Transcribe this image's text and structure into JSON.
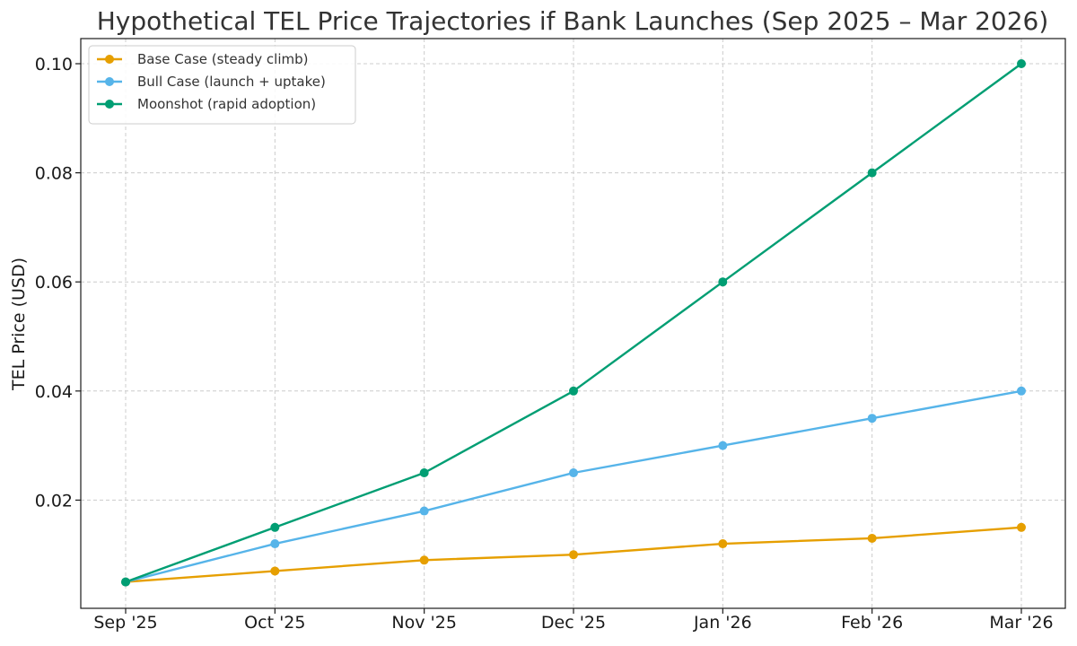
{
  "chart_data": {
    "type": "line",
    "title": "Hypothetical TEL Price Trajectories if Bank Launches (Sep 2025 – Mar 2026)",
    "xlabel": "",
    "ylabel": "TEL Price (USD)",
    "categories": [
      "Sep '25",
      "Oct '25",
      "Nov '25",
      "Dec '25",
      "Jan '26",
      "Feb '26",
      "Mar '26"
    ],
    "ylim": [
      0,
      0.105
    ],
    "yticks": [
      0.02,
      0.04,
      0.06,
      0.08,
      0.1
    ],
    "ytick_labels": [
      "0.02",
      "0.04",
      "0.06",
      "0.08",
      "0.10"
    ],
    "grid": true,
    "legend_position": "top-left",
    "series": [
      {
        "name": "Base Case (steady climb)",
        "color": "#E69F00",
        "values": [
          0.005,
          0.007,
          0.009,
          0.01,
          0.012,
          0.013,
          0.015
        ]
      },
      {
        "name": "Bull Case (launch + uptake)",
        "color": "#56B4E9",
        "values": [
          0.005,
          0.012,
          0.018,
          0.025,
          0.03,
          0.035,
          0.04
        ]
      },
      {
        "name": "Moonshot (rapid adoption)",
        "color": "#009E73",
        "values": [
          0.005,
          0.015,
          0.025,
          0.04,
          0.06,
          0.08,
          0.1
        ]
      }
    ]
  }
}
